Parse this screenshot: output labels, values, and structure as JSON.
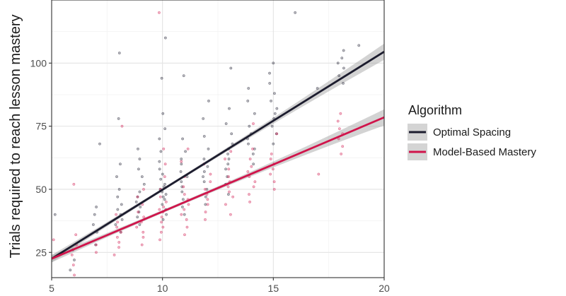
{
  "chart_data": {
    "type": "scatter",
    "title": "",
    "xlabel": "",
    "ylabel": "Trials required to reach lesson mastery",
    "xlim": [
      5,
      20
    ],
    "ylim": [
      15,
      125
    ],
    "x_ticks": [
      "5",
      "10",
      "15",
      "20"
    ],
    "y_ticks": [
      "25",
      "50",
      "75",
      "100"
    ],
    "grid": true,
    "legend_title": "Algorithm",
    "legend_position": "right",
    "series": [
      {
        "name": "Optimal Spacing",
        "color": "#1c1c2e",
        "fit_line": {
          "x": [
            5,
            20
          ],
          "y": [
            22.5,
            104.5
          ]
        },
        "points": [
          [
            5,
            40
          ],
          [
            6,
            18
          ],
          [
            6,
            22
          ],
          [
            6,
            26
          ],
          [
            7,
            28
          ],
          [
            7,
            33
          ],
          [
            7,
            36
          ],
          [
            7,
            40
          ],
          [
            7,
            43
          ],
          [
            7,
            68
          ],
          [
            8,
            33
          ],
          [
            8,
            36
          ],
          [
            8,
            38
          ],
          [
            8,
            40
          ],
          [
            8,
            42
          ],
          [
            8,
            44
          ],
          [
            8,
            47
          ],
          [
            8,
            50
          ],
          [
            8,
            55
          ],
          [
            8,
            60
          ],
          [
            8,
            78
          ],
          [
            8,
            104
          ],
          [
            9,
            36
          ],
          [
            9,
            39
          ],
          [
            9,
            41
          ],
          [
            9,
            43
          ],
          [
            9,
            45
          ],
          [
            9,
            47
          ],
          [
            9,
            49
          ],
          [
            9,
            52
          ],
          [
            9,
            55
          ],
          [
            9,
            58
          ],
          [
            9,
            62
          ],
          [
            9,
            66
          ],
          [
            10,
            38
          ],
          [
            10,
            40
          ],
          [
            10,
            42
          ],
          [
            10,
            44
          ],
          [
            10,
            46
          ],
          [
            10,
            47
          ],
          [
            10,
            48
          ],
          [
            10,
            49
          ],
          [
            10,
            50
          ],
          [
            10,
            51
          ],
          [
            10,
            52
          ],
          [
            10,
            54
          ],
          [
            10,
            56
          ],
          [
            10,
            58
          ],
          [
            10,
            61
          ],
          [
            10,
            65
          ],
          [
            10,
            70
          ],
          [
            10,
            74
          ],
          [
            10,
            80
          ],
          [
            10,
            94
          ],
          [
            10,
            110
          ],
          [
            11,
            40
          ],
          [
            11,
            43
          ],
          [
            11,
            46
          ],
          [
            11,
            49
          ],
          [
            11,
            51
          ],
          [
            11,
            53
          ],
          [
            11,
            55
          ],
          [
            11,
            57
          ],
          [
            11,
            60
          ],
          [
            11,
            62
          ],
          [
            11,
            65
          ],
          [
            11,
            70
          ],
          [
            11,
            95
          ],
          [
            12,
            44
          ],
          [
            12,
            47
          ],
          [
            12,
            50
          ],
          [
            12,
            53
          ],
          [
            12,
            55
          ],
          [
            12,
            57
          ],
          [
            12,
            59
          ],
          [
            12,
            62
          ],
          [
            12,
            66
          ],
          [
            12,
            71
          ],
          [
            12,
            78
          ],
          [
            12,
            85
          ],
          [
            13,
            48
          ],
          [
            13,
            52
          ],
          [
            13,
            55
          ],
          [
            13,
            58
          ],
          [
            13,
            60
          ],
          [
            13,
            62
          ],
          [
            13,
            64
          ],
          [
            13,
            66
          ],
          [
            13,
            68
          ],
          [
            13,
            72
          ],
          [
            13,
            76
          ],
          [
            13,
            82
          ],
          [
            13,
            98
          ],
          [
            14,
            60
          ],
          [
            14,
            64
          ],
          [
            14,
            66
          ],
          [
            14,
            68
          ],
          [
            14,
            70
          ],
          [
            14,
            72
          ],
          [
            14,
            75
          ],
          [
            14,
            80
          ],
          [
            14,
            85
          ],
          [
            14,
            90
          ],
          [
            15,
            68
          ],
          [
            15,
            72
          ],
          [
            15,
            75
          ],
          [
            15,
            78
          ],
          [
            15,
            80
          ],
          [
            15,
            82
          ],
          [
            15,
            85
          ],
          [
            15,
            88
          ],
          [
            15,
            92
          ],
          [
            15,
            96
          ],
          [
            15,
            100
          ],
          [
            16,
            120
          ],
          [
            17,
            90
          ],
          [
            18,
            92
          ],
          [
            18,
            95
          ],
          [
            18,
            98
          ],
          [
            18,
            100
          ],
          [
            18,
            102
          ],
          [
            18,
            105
          ],
          [
            19,
            107
          ]
        ]
      },
      {
        "name": "Model-Based Mastery",
        "color": "#d0144b",
        "fit_line": {
          "x": [
            5,
            20
          ],
          "y": [
            22.5,
            78.5
          ]
        },
        "points": [
          [
            5,
            30
          ],
          [
            6,
            16
          ],
          [
            6,
            20
          ],
          [
            6,
            24
          ],
          [
            6,
            28
          ],
          [
            6,
            32
          ],
          [
            6,
            52
          ],
          [
            7,
            25
          ],
          [
            7,
            28
          ],
          [
            8,
            24
          ],
          [
            8,
            27
          ],
          [
            8,
            29
          ],
          [
            8,
            31
          ],
          [
            8,
            33
          ],
          [
            8,
            35
          ],
          [
            8,
            37
          ],
          [
            8,
            40
          ],
          [
            8,
            75
          ],
          [
            9,
            28
          ],
          [
            9,
            31
          ],
          [
            9,
            33
          ],
          [
            9,
            35
          ],
          [
            9,
            37
          ],
          [
            9,
            39
          ],
          [
            9,
            41
          ],
          [
            9,
            44
          ],
          [
            9,
            47
          ],
          [
            9,
            50
          ],
          [
            10,
            30
          ],
          [
            10,
            33
          ],
          [
            10,
            35
          ],
          [
            10,
            37
          ],
          [
            10,
            39
          ],
          [
            10,
            41
          ],
          [
            10,
            42
          ],
          [
            10,
            43
          ],
          [
            10,
            45
          ],
          [
            10,
            47
          ],
          [
            10,
            50
          ],
          [
            10,
            55
          ],
          [
            10,
            60
          ],
          [
            10,
            66
          ],
          [
            10,
            120
          ],
          [
            11,
            32
          ],
          [
            11,
            35
          ],
          [
            11,
            38
          ],
          [
            11,
            40
          ],
          [
            11,
            42
          ],
          [
            11,
            44
          ],
          [
            11,
            46
          ],
          [
            11,
            48
          ],
          [
            11,
            51
          ],
          [
            11,
            55
          ],
          [
            11,
            61
          ],
          [
            11,
            66
          ],
          [
            12,
            38
          ],
          [
            12,
            41
          ],
          [
            12,
            44
          ],
          [
            12,
            46
          ],
          [
            12,
            48
          ],
          [
            12,
            50
          ],
          [
            12,
            53
          ],
          [
            12,
            56
          ],
          [
            12,
            60
          ],
          [
            13,
            40
          ],
          [
            13,
            44
          ],
          [
            13,
            47
          ],
          [
            13,
            49
          ],
          [
            13,
            51
          ],
          [
            13,
            53
          ],
          [
            13,
            55
          ],
          [
            13,
            58
          ],
          [
            13,
            62
          ],
          [
            13,
            65
          ],
          [
            14,
            45
          ],
          [
            14,
            48
          ],
          [
            14,
            51
          ],
          [
            14,
            53
          ],
          [
            14,
            55
          ],
          [
            14,
            57
          ],
          [
            14,
            59
          ],
          [
            14,
            62
          ],
          [
            14,
            66
          ],
          [
            14,
            76
          ],
          [
            15,
            50
          ],
          [
            15,
            53
          ],
          [
            15,
            56
          ],
          [
            15,
            58
          ],
          [
            15,
            60
          ],
          [
            15,
            62
          ],
          [
            15,
            64
          ],
          [
            15,
            72
          ],
          [
            17,
            56
          ],
          [
            18,
            64
          ],
          [
            18,
            67
          ],
          [
            18,
            70
          ],
          [
            18,
            72
          ],
          [
            18,
            74
          ],
          [
            18,
            77
          ],
          [
            18,
            80
          ]
        ]
      }
    ]
  }
}
